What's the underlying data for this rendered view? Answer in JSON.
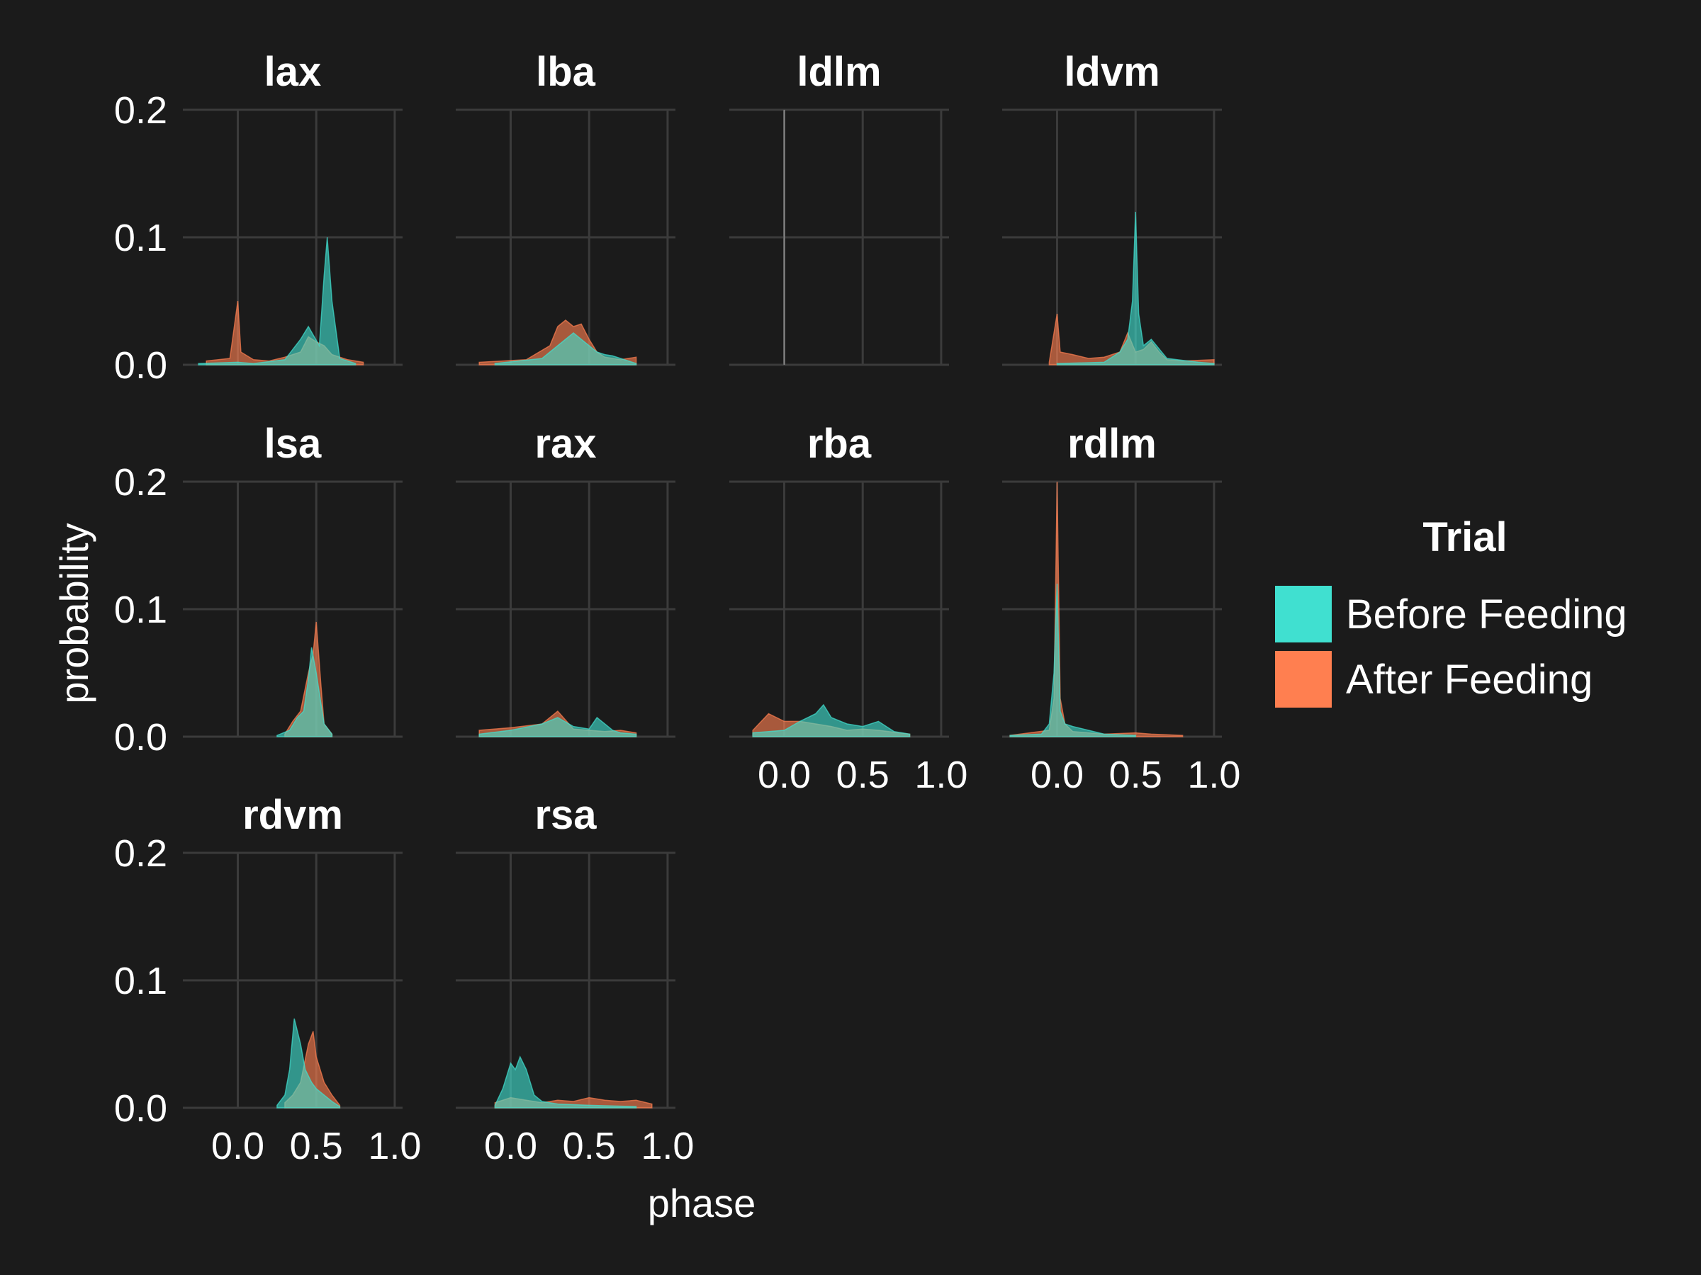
{
  "chart_data": {
    "type": "area",
    "xlabel": "phase",
    "ylabel": "probability",
    "xlim": [
      -0.35,
      1.05
    ],
    "ylim": [
      0,
      0.2
    ],
    "x_ticks": [
      "0.0",
      "0.5",
      "1.0"
    ],
    "y_ticks": [
      "0.0",
      "0.1",
      "0.2"
    ],
    "grid": true,
    "legend": {
      "title": "Trial",
      "position": "right",
      "entries": [
        {
          "name": "Before Feeding",
          "color": "#40e0d0"
        },
        {
          "name": "After Feeding",
          "color": "#ff7f50"
        }
      ]
    },
    "panels": [
      {
        "title": "lax",
        "series": [
          {
            "name": "Before Feeding",
            "x": [
              -0.25,
              0.0,
              0.1,
              0.3,
              0.4,
              0.45,
              0.52,
              0.55,
              0.57,
              0.6,
              0.65,
              0.75
            ],
            "y": [
              0.001,
              0.002,
              0.001,
              0.004,
              0.02,
              0.03,
              0.015,
              0.07,
              0.1,
              0.05,
              0.005,
              0.001
            ]
          },
          {
            "name": "After Feeding",
            "x": [
              -0.2,
              -0.05,
              0.0,
              0.02,
              0.1,
              0.2,
              0.3,
              0.4,
              0.45,
              0.5,
              0.55,
              0.6,
              0.7,
              0.8
            ],
            "y": [
              0.003,
              0.005,
              0.05,
              0.01,
              0.004,
              0.003,
              0.006,
              0.01,
              0.022,
              0.018,
              0.015,
              0.008,
              0.004,
              0.002
            ]
          }
        ]
      },
      {
        "title": "lba",
        "series": [
          {
            "name": "Before Feeding",
            "x": [
              -0.1,
              0.2,
              0.3,
              0.35,
              0.4,
              0.45,
              0.5,
              0.55,
              0.6,
              0.65,
              0.7,
              0.8
            ],
            "y": [
              0.001,
              0.005,
              0.015,
              0.02,
              0.025,
              0.02,
              0.015,
              0.01,
              0.008,
              0.007,
              0.005,
              0.001
            ]
          },
          {
            "name": "After Feeding",
            "x": [
              -0.2,
              0.1,
              0.25,
              0.3,
              0.35,
              0.4,
              0.45,
              0.5,
              0.55,
              0.6,
              0.7,
              0.8
            ],
            "y": [
              0.002,
              0.004,
              0.015,
              0.03,
              0.035,
              0.03,
              0.032,
              0.02,
              0.01,
              0.006,
              0.004,
              0.006
            ]
          }
        ]
      },
      {
        "title": "ldlm",
        "series": [
          {
            "name": "Before Feeding",
            "x": [
              -0.01,
              0.0,
              0.01
            ],
            "y": [
              0.0,
              0.2,
              0.0
            ]
          },
          {
            "name": "After Feeding",
            "x": [
              -0.01,
              0.0,
              0.01
            ],
            "y": [
              0.0,
              0.2,
              0.0
            ]
          }
        ]
      },
      {
        "title": "ldvm",
        "series": [
          {
            "name": "Before Feeding",
            "x": [
              0.0,
              0.3,
              0.4,
              0.45,
              0.48,
              0.5,
              0.52,
              0.55,
              0.6,
              0.7,
              0.9,
              1.0
            ],
            "y": [
              0.001,
              0.002,
              0.01,
              0.02,
              0.05,
              0.12,
              0.04,
              0.015,
              0.02,
              0.005,
              0.002,
              0.001
            ]
          },
          {
            "name": "After Feeding",
            "x": [
              -0.05,
              0.0,
              0.02,
              0.1,
              0.2,
              0.3,
              0.4,
              0.45,
              0.5,
              0.55,
              0.6,
              0.65,
              0.7,
              0.8,
              1.0
            ],
            "y": [
              0.002,
              0.04,
              0.01,
              0.008,
              0.005,
              0.006,
              0.01,
              0.025,
              0.01,
              0.012,
              0.018,
              0.01,
              0.004,
              0.003,
              0.004
            ]
          }
        ]
      },
      {
        "title": "lsa",
        "series": [
          {
            "name": "Before Feeding",
            "x": [
              0.25,
              0.33,
              0.38,
              0.42,
              0.45,
              0.47,
              0.5,
              0.55,
              0.6
            ],
            "y": [
              0.001,
              0.005,
              0.015,
              0.02,
              0.045,
              0.07,
              0.05,
              0.01,
              0.002
            ]
          },
          {
            "name": "After Feeding",
            "x": [
              0.3,
              0.35,
              0.4,
              0.45,
              0.48,
              0.5,
              0.53,
              0.55,
              0.6
            ],
            "y": [
              0.002,
              0.012,
              0.02,
              0.05,
              0.065,
              0.09,
              0.04,
              0.01,
              0.002
            ]
          }
        ]
      },
      {
        "title": "rax",
        "series": [
          {
            "name": "Before Feeding",
            "x": [
              -0.2,
              0.0,
              0.2,
              0.3,
              0.4,
              0.5,
              0.55,
              0.6,
              0.65,
              0.7,
              0.8
            ],
            "y": [
              0.002,
              0.005,
              0.01,
              0.015,
              0.008,
              0.006,
              0.015,
              0.01,
              0.005,
              0.003,
              0.002
            ]
          },
          {
            "name": "After Feeding",
            "x": [
              -0.2,
              0.0,
              0.2,
              0.3,
              0.4,
              0.5,
              0.6,
              0.7,
              0.8
            ],
            "y": [
              0.005,
              0.007,
              0.01,
              0.02,
              0.006,
              0.005,
              0.004,
              0.005,
              0.003
            ]
          }
        ]
      },
      {
        "title": "rba",
        "series": [
          {
            "name": "Before Feeding",
            "x": [
              -0.2,
              0.0,
              0.1,
              0.2,
              0.25,
              0.3,
              0.4,
              0.5,
              0.6,
              0.7,
              0.8
            ],
            "y": [
              0.003,
              0.005,
              0.012,
              0.018,
              0.025,
              0.015,
              0.01,
              0.008,
              0.012,
              0.004,
              0.002
            ]
          },
          {
            "name": "After Feeding",
            "x": [
              -0.2,
              -0.1,
              0.0,
              0.1,
              0.2,
              0.3,
              0.4,
              0.5,
              0.6,
              0.8
            ],
            "y": [
              0.005,
              0.018,
              0.012,
              0.012,
              0.01,
              0.008,
              0.005,
              0.006,
              0.005,
              0.002
            ]
          }
        ]
      },
      {
        "title": "rdlm",
        "series": [
          {
            "name": "Before Feeding",
            "x": [
              -0.3,
              -0.1,
              -0.05,
              -0.02,
              0.0,
              0.02,
              0.05,
              0.1,
              0.2,
              0.3,
              0.5
            ],
            "y": [
              0.001,
              0.002,
              0.01,
              0.05,
              0.12,
              0.02,
              0.01,
              0.008,
              0.005,
              0.002,
              0.001
            ]
          },
          {
            "name": "After Feeding",
            "x": [
              -0.3,
              -0.05,
              -0.02,
              0.0,
              0.02,
              0.05,
              0.1,
              0.3,
              0.5,
              0.6,
              0.8
            ],
            "y": [
              0.001,
              0.005,
              0.03,
              0.2,
              0.03,
              0.01,
              0.004,
              0.002,
              0.003,
              0.002,
              0.001
            ]
          }
        ]
      },
      {
        "title": "rdvm",
        "series": [
          {
            "name": "Before Feeding",
            "x": [
              0.25,
              0.3,
              0.33,
              0.36,
              0.4,
              0.43,
              0.47,
              0.5,
              0.55,
              0.6,
              0.65
            ],
            "y": [
              0.002,
              0.01,
              0.03,
              0.07,
              0.05,
              0.03,
              0.02,
              0.015,
              0.01,
              0.005,
              0.001
            ]
          },
          {
            "name": "After Feeding",
            "x": [
              0.3,
              0.35,
              0.4,
              0.45,
              0.48,
              0.5,
              0.55,
              0.6,
              0.65
            ],
            "y": [
              0.004,
              0.01,
              0.02,
              0.05,
              0.06,
              0.04,
              0.02,
              0.01,
              0.002
            ]
          }
        ]
      },
      {
        "title": "rsa",
        "series": [
          {
            "name": "Before Feeding",
            "x": [
              -0.1,
              -0.05,
              0.0,
              0.03,
              0.06,
              0.1,
              0.15,
              0.2,
              0.3,
              0.5,
              0.8
            ],
            "y": [
              0.002,
              0.015,
              0.035,
              0.03,
              0.04,
              0.03,
              0.01,
              0.005,
              0.003,
              0.002,
              0.001
            ]
          },
          {
            "name": "After Feeding",
            "x": [
              -0.1,
              0.0,
              0.1,
              0.2,
              0.3,
              0.4,
              0.5,
              0.6,
              0.7,
              0.8,
              0.9
            ],
            "y": [
              0.004,
              0.008,
              0.006,
              0.004,
              0.006,
              0.005,
              0.008,
              0.006,
              0.005,
              0.006,
              0.003
            ]
          }
        ]
      }
    ]
  }
}
